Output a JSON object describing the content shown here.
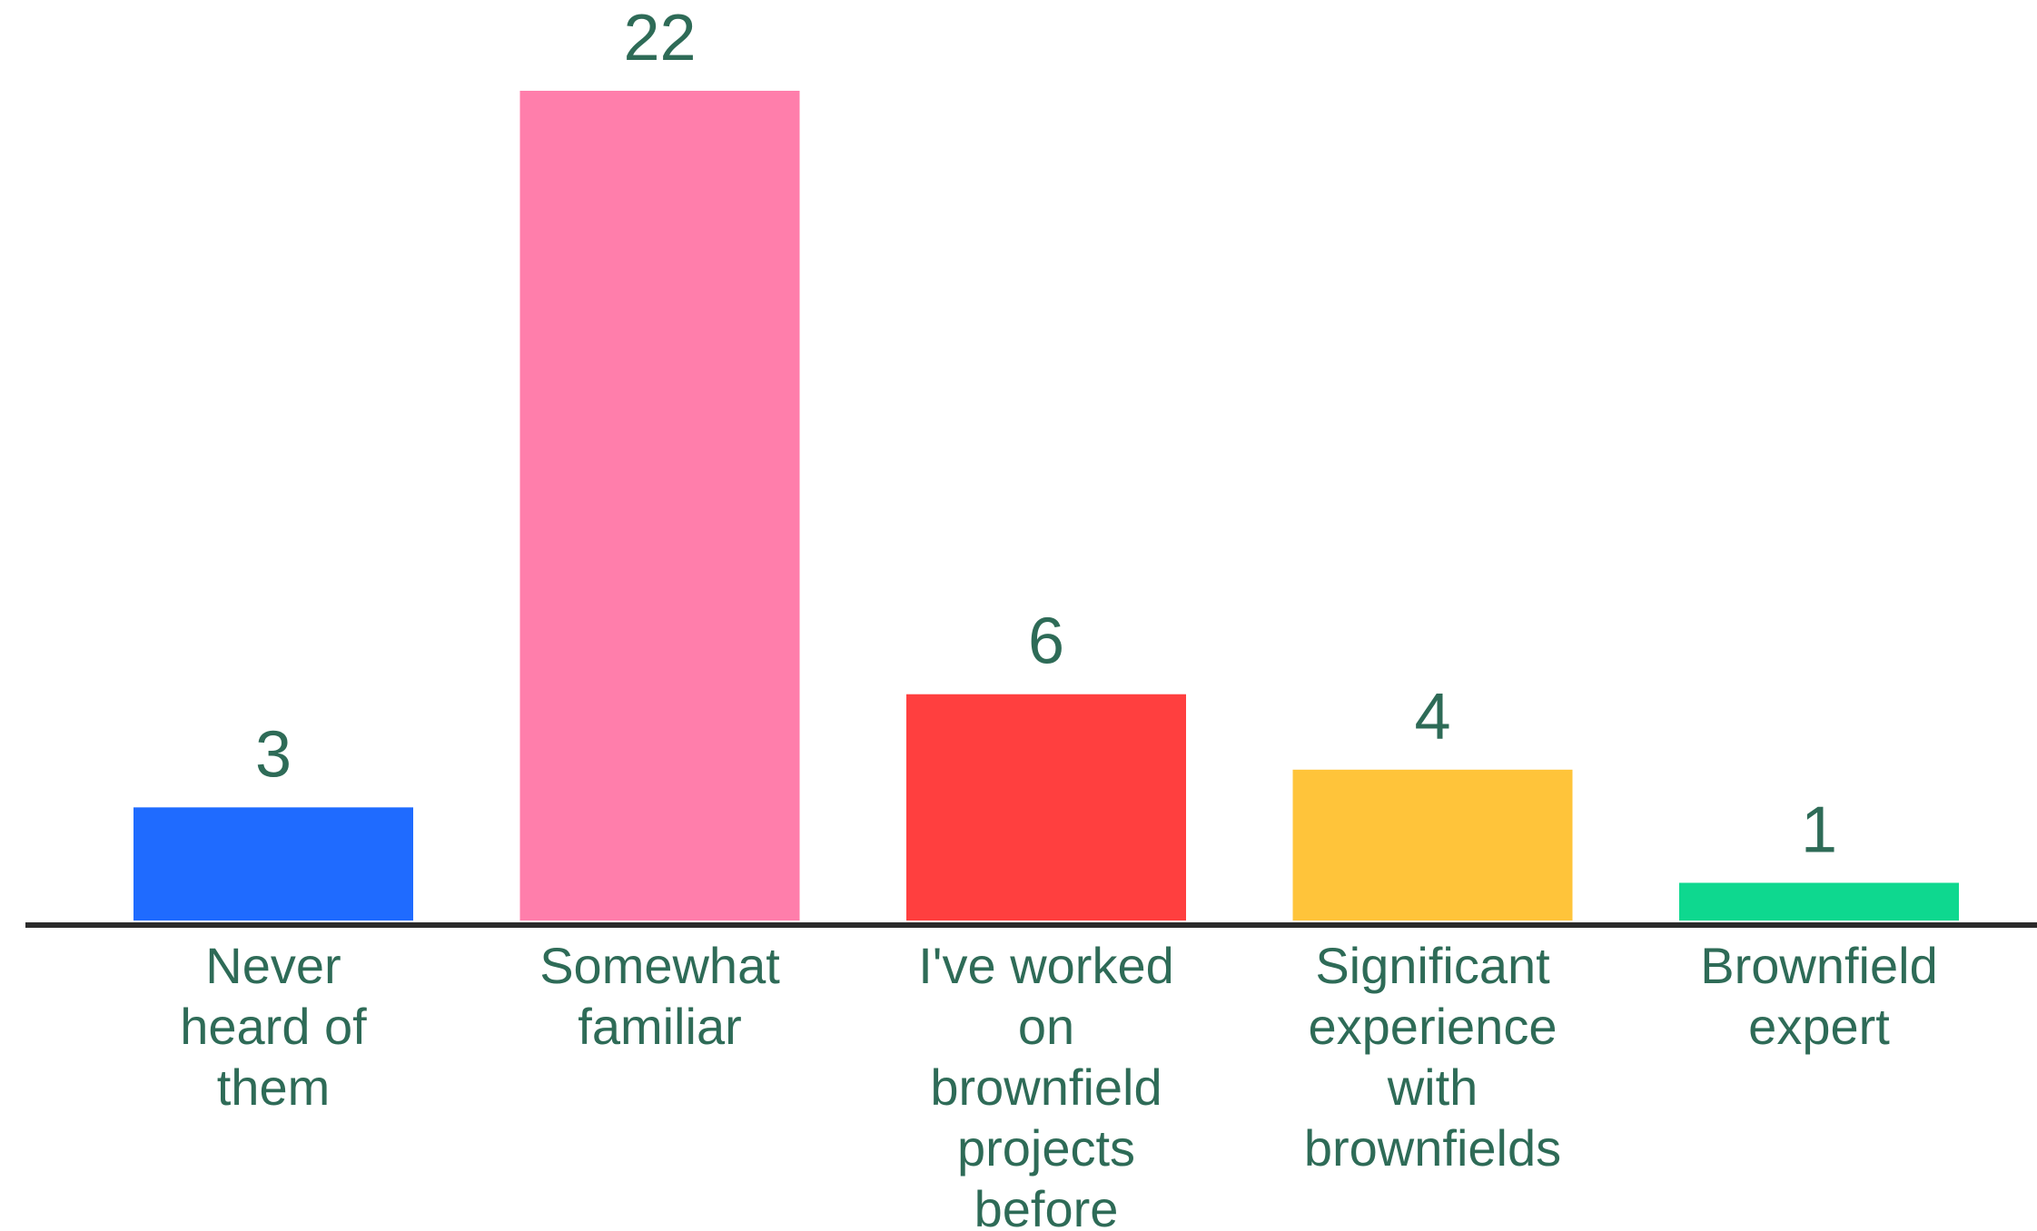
{
  "chart_data": {
    "type": "bar",
    "categories": [
      "Never heard of them",
      "Somewhat familiar",
      "I've worked on brownfield projects before",
      "Significant experience with brownfields",
      "Brownfield expert"
    ],
    "category_lines": [
      [
        "Never",
        "heard of",
        "them"
      ],
      [
        "Somewhat",
        "familiar"
      ],
      [
        "I've worked",
        "on",
        "brownfield",
        "projects",
        "before"
      ],
      [
        "Significant",
        "experience",
        "with",
        "brownfields"
      ],
      [
        "Brownfield",
        "expert"
      ]
    ],
    "values": [
      3,
      22,
      6,
      4,
      1
    ],
    "value_labels": [
      "3",
      "22",
      "6",
      "4",
      "1"
    ],
    "bar_colors": [
      "#1f6bff",
      "#ff7eab",
      "#ff3f3f",
      "#ffc43a",
      "#0ed88f"
    ],
    "text_color": "#2e6b57",
    "axis_color": "#2b2b2b",
    "ylim": [
      0,
      22
    ],
    "grid": false,
    "legend": "none"
  }
}
